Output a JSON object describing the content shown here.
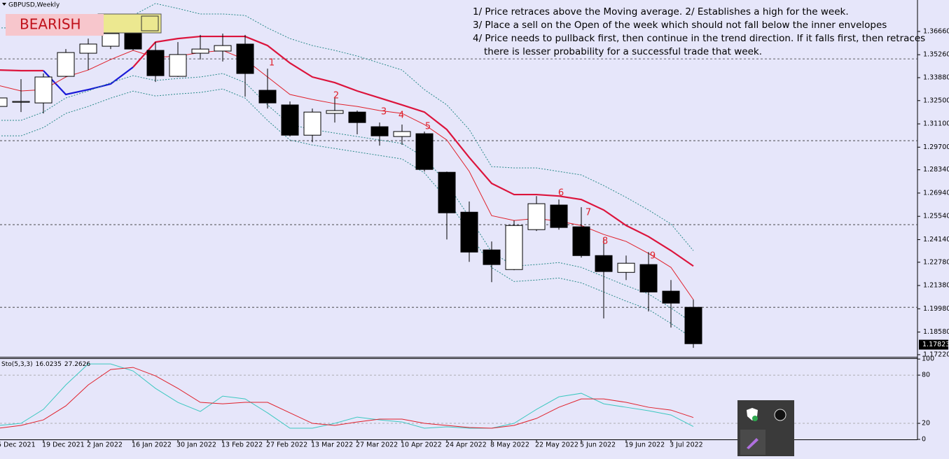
{
  "window": {
    "symbol": "GBPUSD,Weekly",
    "badge": "BEARISH"
  },
  "notes": [
    "1/ Price retraces above the Moving average. 2/ Establishes a high for the week.",
    "3/ Place a sell on the Open of the week which should not fall below the inner envelopes",
    "4/ Price needs to pullback first, then continue in the trend direction. If it falls first, then retraces",
    "there is lesser probability for a successful trade that week."
  ],
  "chart_data": [
    {
      "type": "candlestick",
      "categories": [
        "5 Dec 2021",
        null,
        "19 Dec 2021",
        null,
        "2 Jan 2022",
        null,
        "16 Jan 2022",
        null,
        "30 Jan 2022",
        null,
        "13 Feb 2022",
        null,
        "27 Feb 2022",
        null,
        "13 Mar 2022",
        null,
        "27 Mar 2022",
        null,
        "10 Apr 2022",
        null,
        "24 Apr 2022",
        null,
        "8 May 2022",
        null,
        "22 May 2022",
        null,
        "5 Jun 2022",
        null,
        "19 Jun 2022",
        null,
        "3 Jul 2022",
        null
      ],
      "open": [
        1.3215,
        1.324,
        1.3236,
        1.3396,
        1.3535,
        1.3577,
        1.3653,
        1.3552,
        1.3396,
        1.3535,
        1.3548,
        1.359,
        1.3312,
        1.3224,
        1.3042,
        1.3173,
        1.3181,
        1.3093,
        1.3034,
        1.3051,
        1.2819,
        1.2579,
        1.2352,
        1.2234,
        1.2474,
        1.2622,
        1.2491,
        1.2318,
        1.2217,
        1.2264,
        1.2104,
        1.2007
      ],
      "high": [
        1.3287,
        1.3379,
        1.3413,
        1.356,
        1.3623,
        1.3729,
        1.37,
        1.3602,
        1.3602,
        1.3645,
        1.3653,
        1.3645,
        1.3442,
        1.3245,
        1.3202,
        1.3266,
        1.319,
        1.3118,
        1.3106,
        1.3064,
        1.2823,
        1.2643,
        1.2403,
        1.2529,
        1.2676,
        1.2655,
        1.2609,
        1.2424,
        1.2318,
        1.2339,
        1.2171,
        1.2053
      ],
      "low": [
        1.3202,
        1.3181,
        1.3173,
        1.3392,
        1.3434,
        1.356,
        1.3552,
        1.3362,
        1.3392,
        1.3497,
        1.3485,
        1.3274,
        1.3202,
        1.3034,
        1.3,
        1.3118,
        1.3047,
        1.2979,
        1.2984,
        1.2823,
        1.2415,
        1.228,
        1.2158,
        1.223,
        1.2466,
        1.2474,
        1.2306,
        1.194,
        1.2171,
        1.1982,
        1.1885,
        1.1763
      ],
      "close": [
        1.3266,
        1.3245,
        1.3392,
        1.3539,
        1.359,
        1.3653,
        1.356,
        1.34,
        1.3527,
        1.356,
        1.3581,
        1.3413,
        1.3236,
        1.3042,
        1.3181,
        1.319,
        1.3118,
        1.3038,
        1.3064,
        1.2836,
        1.2575,
        1.2339,
        1.2264,
        1.2499,
        1.263,
        1.2487,
        1.2318,
        1.2222,
        1.2272,
        1.2099,
        1.2032,
        1.1788
      ],
      "up_color": "#ffffff",
      "down_color": "#000000",
      "overlays": [
        {
          "style": "thick",
          "color": "#dc143c",
          "values": [
            1.3434,
            1.343,
            1.343,
            null,
            null,
            null,
            1.3451,
            1.3602,
            1.3623,
            1.3636,
            1.3636,
            1.3636,
            1.3581,
            1.3476,
            1.3392,
            1.3358,
            1.3308,
            1.3266,
            1.3224,
            1.3181,
            1.3076,
            1.2908,
            1.2752,
            1.2685,
            1.2685,
            1.2676,
            1.2655,
            1.2592,
            1.2499,
            1.2432,
            1.2348,
            1.2255
          ]
        },
        {
          "style": "thick",
          "color": "#1a1ad8",
          "values": [
            null,
            null,
            1.343,
            1.3287,
            1.3316,
            1.335,
            1.3451,
            null,
            null,
            null,
            null,
            null,
            null,
            null,
            null,
            null,
            null,
            null,
            null,
            null,
            null,
            null,
            null,
            null,
            null,
            null,
            null,
            null,
            null,
            null,
            null,
            null
          ]
        },
        {
          "style": "thin",
          "color": "#e0202a",
          "values": [
            1.3341,
            1.3308,
            1.3316,
            1.3392,
            1.3434,
            1.3497,
            1.3552,
            1.351,
            1.3518,
            1.3539,
            1.3552,
            1.3497,
            1.3392,
            1.3287,
            1.3257,
            1.3232,
            1.3215,
            1.319,
            1.3173,
            1.3106,
            1.3013,
            1.2824,
            1.2558,
            1.2529,
            1.2541,
            1.2525,
            1.2499,
            1.2445,
            1.2403,
            1.2331,
            1.2247,
            1.2053
          ]
        },
        {
          "style": "dotted",
          "color": "#2a8a8a",
          "values": [
            1.3687,
            1.3687,
            1.3695,
            1.3729,
            1.375,
            1.3762,
            1.3762,
            1.3834,
            1.3804,
            1.3771,
            1.3771,
            1.3762,
            1.3687,
            1.3623,
            1.3581,
            1.3552,
            1.3518,
            1.3476,
            1.3434,
            1.3316,
            1.3224,
            1.3076,
            1.2853,
            1.2845,
            1.2845,
            1.2824,
            1.2803,
            1.2739,
            1.2668,
            1.2592,
            1.2508,
            1.2348
          ]
        },
        {
          "style": "dotted",
          "color": "#2a8a8a",
          "values": [
            1.3131,
            1.3131,
            1.3181,
            1.3266,
            1.3308,
            1.3358,
            1.34,
            1.3371,
            1.3383,
            1.3392,
            1.3413,
            1.3358,
            1.3224,
            1.3106,
            1.3076,
            1.3055,
            1.3034,
            1.3013,
            1.2992,
            1.2908,
            1.2752,
            1.255,
            1.2339,
            1.2255,
            1.2264,
            1.2276,
            1.2247,
            1.2192,
            1.2137,
            1.2087,
            1.2003,
            1.191
          ]
        },
        {
          "style": "dotted",
          "color": "#2a8a8a",
          "values": [
            1.3038,
            1.3038,
            1.3088,
            1.3173,
            1.3215,
            1.3265,
            1.3307,
            1.3278,
            1.329,
            1.3299,
            1.332,
            1.3265,
            1.3131,
            1.3013,
            1.2983,
            1.2962,
            1.2941,
            1.292,
            1.2899,
            1.2815,
            1.2659,
            1.2457,
            1.2246,
            1.2162,
            1.2171,
            1.2183,
            1.2154,
            1.2099,
            1.2044,
            1.1994,
            1.191,
            1.1817
          ]
        }
      ],
      "hlines": [
        1.3501,
        1.3009,
        1.2504,
        1.2007
      ],
      "annotations": [
        {
          "label": "1"
        },
        {
          "label": "2"
        },
        {
          "label": "3"
        },
        {
          "label": "4"
        },
        {
          "label": "5"
        },
        {
          "label": "6"
        },
        {
          "label": "7"
        },
        {
          "label": "8"
        },
        {
          "label": "9"
        }
      ],
      "current_price": 1.17823,
      "ylim": [
        1.1709,
        1.3855
      ],
      "yticks": [
        {
          "value": 1.3666,
          "label": "1.36660"
        },
        {
          "value": 1.3526,
          "label": "1.35260"
        },
        {
          "value": 1.3388,
          "label": "1.33880"
        },
        {
          "value": 1.325,
          "label": "1.32500"
        },
        {
          "value": 1.311,
          "label": "1.31100"
        },
        {
          "value": 1.297,
          "label": "1.29700"
        },
        {
          "value": 1.2834,
          "label": "1.28340"
        },
        {
          "value": 1.2694,
          "label": "1.26940"
        },
        {
          "value": 1.2554,
          "label": "1.25540"
        },
        {
          "value": 1.2414,
          "label": "1.24140"
        },
        {
          "value": 1.2278,
          "label": "1.22780"
        },
        {
          "value": 1.2138,
          "label": "1.21380"
        },
        {
          "value": 1.1998,
          "label": "1.19980"
        },
        {
          "value": 1.1858,
          "label": "1.18580"
        },
        {
          "value": 1.1722,
          "label": "1.17220"
        }
      ]
    },
    {
      "type": "line",
      "title": "Sto(5,3,3)",
      "series": [
        {
          "color": "#3cc8c0",
          "values": [
            17.4,
            20.0,
            37.4,
            67.8,
            93.9,
            93.9,
            85.2,
            63.5,
            46.1,
            34.8,
            53.9,
            50.4,
            33.0,
            13.9,
            13.9,
            20.0,
            27.8,
            24.3,
            21.7,
            13.9,
            15.7,
            13.9,
            13.9,
            20.0,
            37.4,
            53.0,
            57.4,
            44.3,
            40.0,
            35.7,
            30.4,
            16.0235
          ]
        },
        {
          "color": "#e0202a",
          "values": [
            13.9,
            17.4,
            24.3,
            41.7,
            67.8,
            87.0,
            89.6,
            79.1,
            63.5,
            46.1,
            44.3,
            46.1,
            46.1,
            33.0,
            20.0,
            17.4,
            21.7,
            25.2,
            25.2,
            20.0,
            17.4,
            14.8,
            13.9,
            17.4,
            26.1,
            40.0,
            50.4,
            50.4,
            46.1,
            40.0,
            36.5,
            27.2626
          ]
        }
      ],
      "levels": [
        20,
        80
      ],
      "ylim": [
        0,
        101
      ],
      "yticks": [
        0,
        20,
        80,
        100
      ]
    }
  ]
}
